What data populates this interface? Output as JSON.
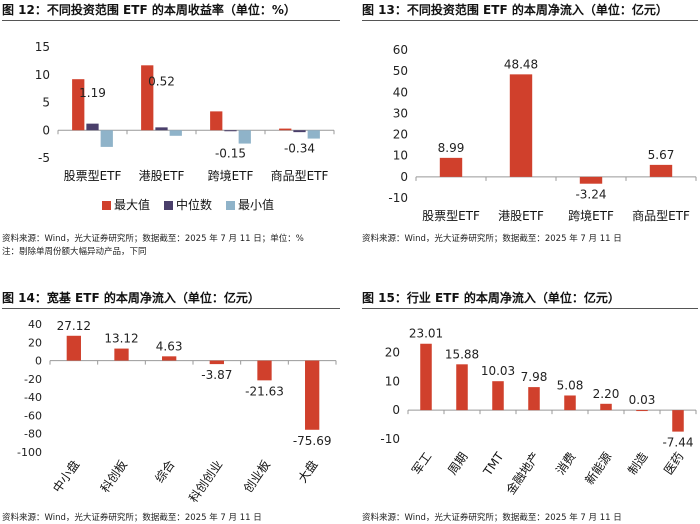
{
  "colors": {
    "max": "#D0402C",
    "median": "#4A3F6B",
    "min": "#8FB3C9",
    "bar": "#D0402C",
    "axis": "#999999"
  },
  "chart_data": [
    {
      "id": "fig12",
      "type": "bar",
      "title": "图 12：不同投资范围 ETF 的本周收益率（单位：%）",
      "categories": [
        "股票型ETF",
        "港股ETF",
        "跨境ETF",
        "商品型ETF"
      ],
      "series": [
        {
          "name": "最大值",
          "values": [
            9.2,
            11.7,
            3.4,
            0.3
          ]
        },
        {
          "name": "中位数",
          "values": [
            1.19,
            0.52,
            -0.15,
            -0.34
          ]
        },
        {
          "name": "最小值",
          "values": [
            -3.0,
            -1.0,
            -2.4,
            -1.5
          ]
        }
      ],
      "data_labels": [
        "1.19",
        "0.52",
        "-0.15",
        "-0.34"
      ],
      "ylim": [
        -5,
        15
      ],
      "yticks": [
        "15",
        "10",
        "5",
        "0",
        "-5"
      ],
      "legend": "bottom",
      "notes": [
        "资料来源：Wind，光大证券研究所；数据截至：2025 年 7 月 11 日；单位：%",
        "注：剔除单周份额大幅异动产品，下同"
      ]
    },
    {
      "id": "fig13",
      "type": "bar",
      "title": "图 13：不同投资范围 ETF 的本周净流入（单位：亿元）",
      "categories": [
        "股票型ETF",
        "港股ETF",
        "跨境ETF",
        "商品型ETF"
      ],
      "values": [
        8.99,
        48.48,
        -3.24,
        5.67
      ],
      "data_labels": [
        "8.99",
        "48.48",
        "-3.24",
        "5.67"
      ],
      "ylim": [
        -10,
        60
      ],
      "yticks": [
        "60",
        "50",
        "40",
        "30",
        "20",
        "10",
        "0",
        "-10"
      ],
      "notes": [
        "资料来源：Wind，光大证券研究所；数据截至：2025 年 7 月 11 日"
      ]
    },
    {
      "id": "fig14",
      "type": "bar",
      "title": "图 14：宽基 ETF 的本周净流入（单位：亿元）",
      "categories": [
        "中小盘",
        "科创板",
        "综合",
        "科创创业",
        "创业板",
        "大盘"
      ],
      "values": [
        27.12,
        13.12,
        4.63,
        -3.87,
        -21.63,
        -75.69
      ],
      "data_labels": [
        "27.12",
        "13.12",
        "4.63",
        "-3.87",
        "-21.63",
        "-75.69"
      ],
      "ylim": [
        -100,
        40
      ],
      "yticks": [
        "40",
        "20",
        "0",
        "-20",
        "-40",
        "-60",
        "-80",
        "-100"
      ],
      "notes": [
        "资料来源：Wind，光大证券研究所；数据截至：2025 年 7 月 11 日"
      ]
    },
    {
      "id": "fig15",
      "type": "bar",
      "title": "图 15：行业 ETF 的本周净流入（单位：亿元）",
      "categories": [
        "军工",
        "周期",
        "TMT",
        "金融地产",
        "消费",
        "新能源",
        "制造",
        "医药"
      ],
      "values": [
        23.01,
        15.88,
        10.03,
        7.98,
        5.08,
        2.2,
        0.03,
        -7.44
      ],
      "data_labels": [
        "23.01",
        "15.88",
        "10.03",
        "7.98",
        "5.08",
        "2.20",
        "0.03",
        "-7.44"
      ],
      "ylim": [
        -10,
        25
      ],
      "yticks": [
        "20",
        "10",
        "0",
        "-10"
      ],
      "notes": [
        "资料来源：Wind，光大证券研究所；数据截至：2025 年 7 月 11 日"
      ]
    }
  ]
}
